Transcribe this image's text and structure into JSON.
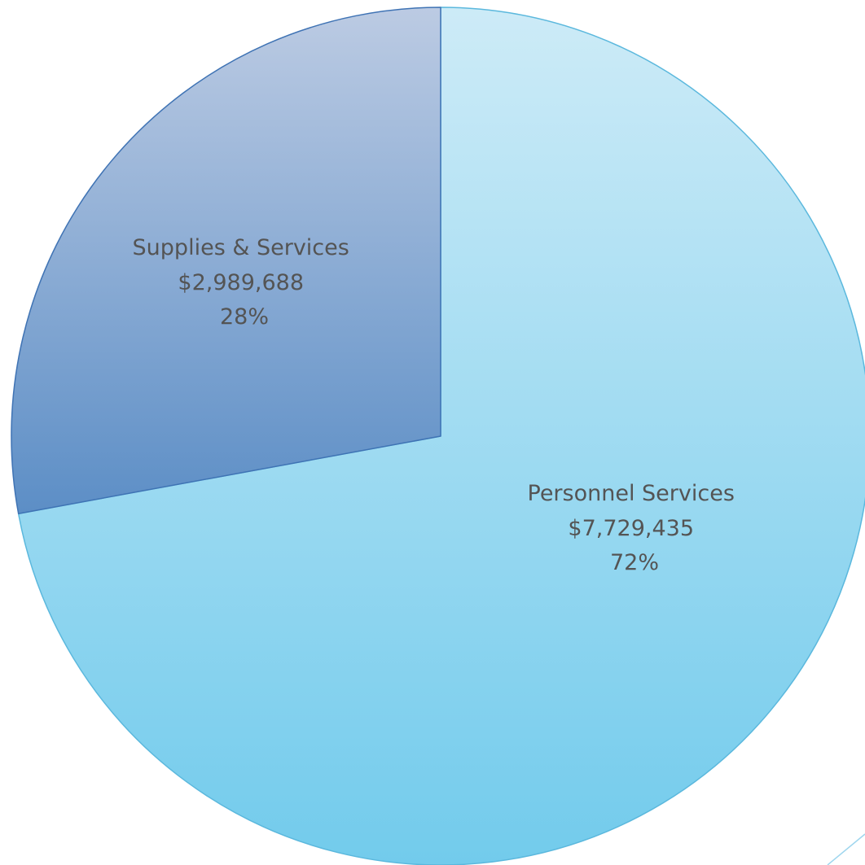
{
  "chart_data": {
    "type": "pie",
    "title": "",
    "slices": [
      {
        "name": "Personnel Services",
        "value": 7729435,
        "value_label": "$7,729,435",
        "percent": 72,
        "percent_label": "72%",
        "color_top": "#cdebf7",
        "color_bottom": "#72cbec",
        "edge_color": "#5bb8dd"
      },
      {
        "name": "Supplies & Services",
        "value": 2989688,
        "value_label": "$2,989,688",
        "percent": 28,
        "percent_label": "28%",
        "color_top": "#bccbe3",
        "color_bottom": "#5c8ec6",
        "edge_color": "#3f73b4"
      }
    ],
    "start_position": "12 o'clock",
    "direction": "clockwise",
    "legend": "none",
    "labels": "inside slices"
  }
}
